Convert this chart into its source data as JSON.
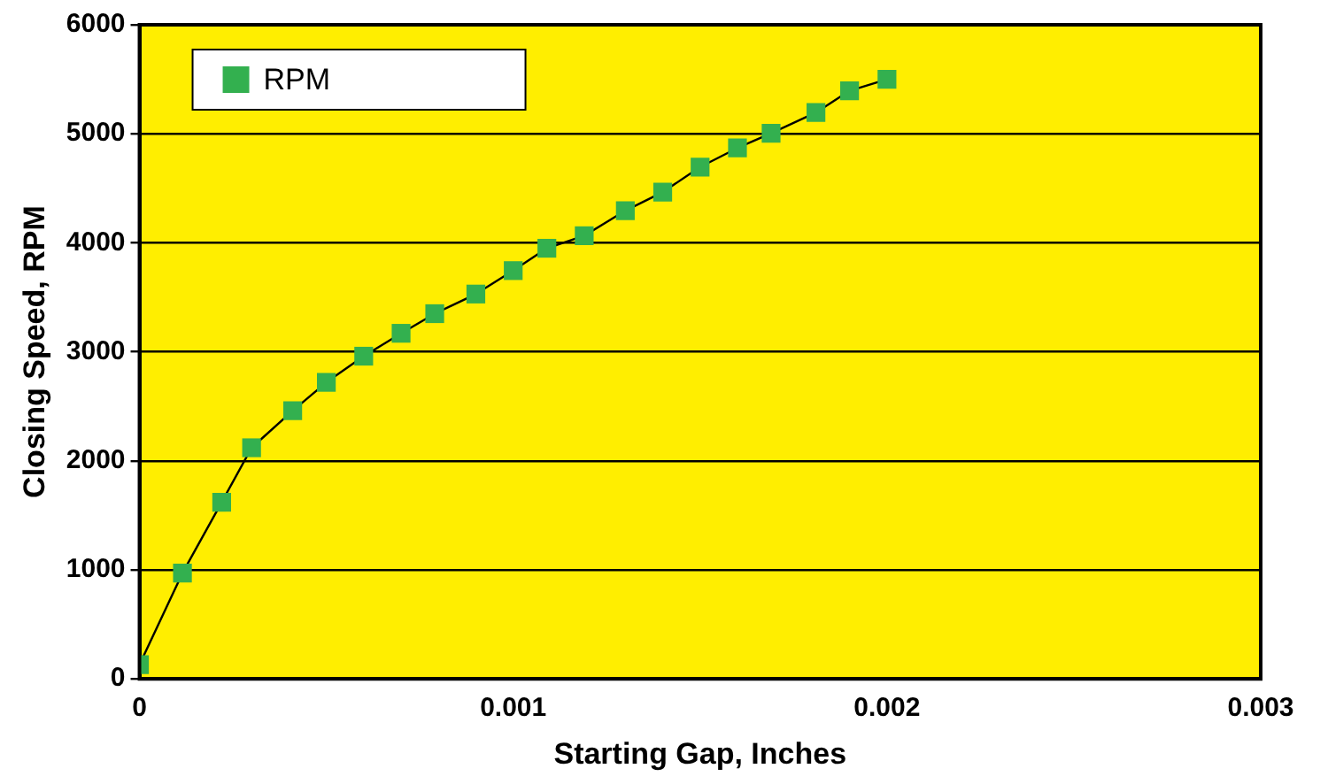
{
  "chart_data": {
    "type": "line",
    "xlabel": "Starting Gap, Inches",
    "ylabel": "Closing Speed, RPM",
    "xlim": [
      0,
      0.003
    ],
    "xticks": [
      0,
      0.001,
      0.002,
      0.003
    ],
    "ylim": [
      0,
      6000
    ],
    "yticks": [
      0,
      1000,
      2000,
      3000,
      4000,
      5000,
      6000
    ],
    "grid": "y",
    "legend": "top left",
    "marker": "square",
    "line_style": "solid",
    "series": [
      {
        "name": "RPM",
        "color": "#33b04f",
        "x": [
          0,
          0.000115,
          0.00022,
          0.0003,
          0.00041,
          0.0005,
          0.0006,
          0.0007,
          0.00079,
          0.0009,
          0.001,
          0.00109,
          0.00119,
          0.0013,
          0.0014,
          0.0015,
          0.0016,
          0.00169,
          0.00181,
          0.0019,
          0.002
        ],
        "values": [
          130,
          970,
          1620,
          2120,
          2460,
          2720,
          2960,
          3170,
          3350,
          3530,
          3745,
          3950,
          4065,
          4295,
          4465,
          4695,
          4870,
          5005,
          5195,
          5395,
          5500
        ]
      }
    ]
  }
}
